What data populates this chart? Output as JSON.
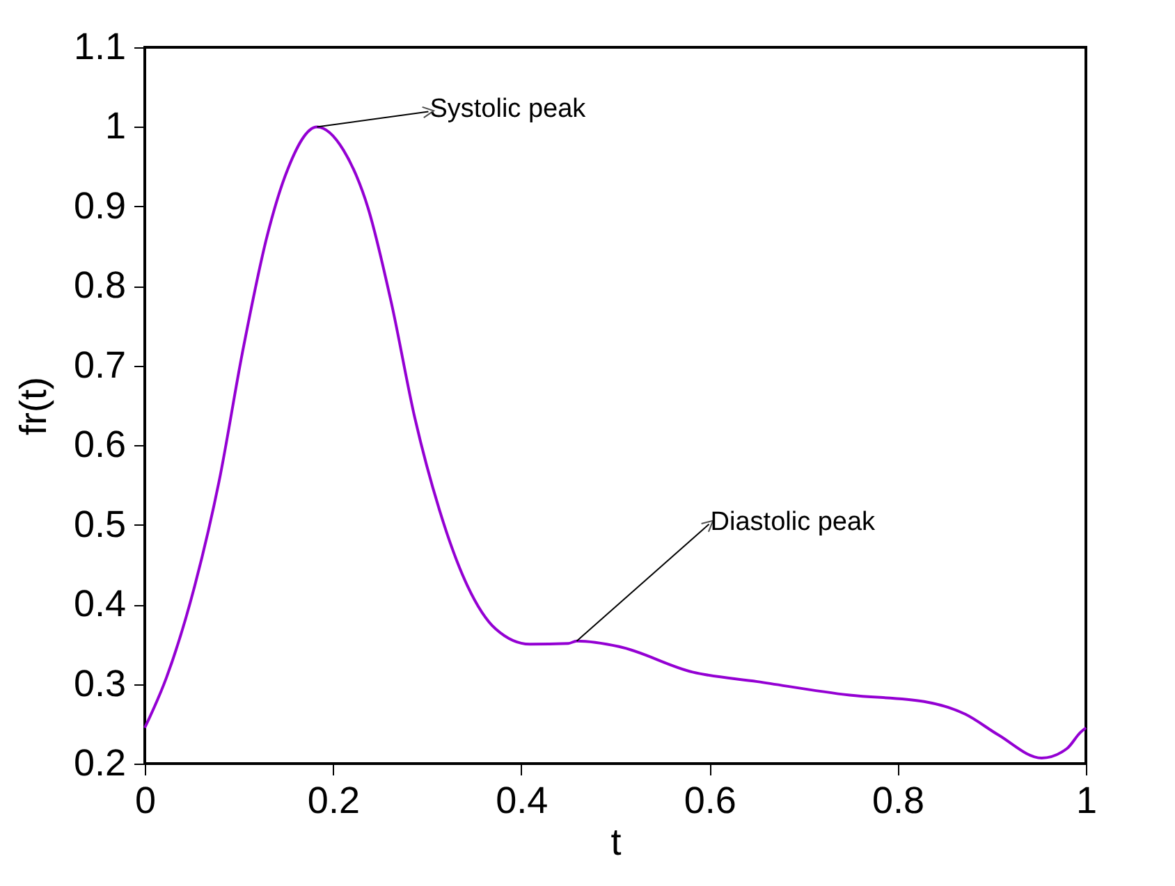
{
  "chart_data": {
    "type": "line",
    "xlabel": "t",
    "ylabel": "fr(t)",
    "xlim": [
      0,
      1
    ],
    "ylim": [
      0.2,
      1.1
    ],
    "xticks": [
      0,
      0.2,
      0.4,
      0.6,
      0.8,
      1
    ],
    "yticks": [
      0.2,
      0.3,
      0.4,
      0.5,
      0.6,
      0.7,
      0.8,
      0.9,
      1,
      1.1
    ],
    "grid": false,
    "marker": "none",
    "line_style": "solid",
    "series": [
      {
        "color": "#9400d3",
        "x": [
          0,
          0.023,
          0.053,
          0.079,
          0.104,
          0.13,
          0.15,
          0.183,
          0.211,
          0.237,
          0.262,
          0.287,
          0.313,
          0.343,
          0.373,
          0.409,
          0.45,
          0.459,
          0.504,
          0.582,
          0.651,
          0.749,
          0.828,
          0.872,
          0.907,
          0.953,
          0.98,
          0.994,
          1
        ],
        "values": [
          0.245,
          0.308,
          0.423,
          0.555,
          0.718,
          0.863,
          0.941,
          1.0,
          0.971,
          0.899,
          0.779,
          0.634,
          0.519,
          0.423,
          0.369,
          0.35,
          0.351,
          0.354,
          0.347,
          0.315,
          0.303,
          0.286,
          0.278,
          0.262,
          0.236,
          0.207,
          0.219,
          0.239,
          0.245
        ]
      }
    ],
    "annotations": [
      {
        "text": "Systolic peak",
        "x": 0.183,
        "y": 1.0
      },
      {
        "text": "Diastolic peak",
        "x": 0.459,
        "y": 0.354
      }
    ]
  }
}
